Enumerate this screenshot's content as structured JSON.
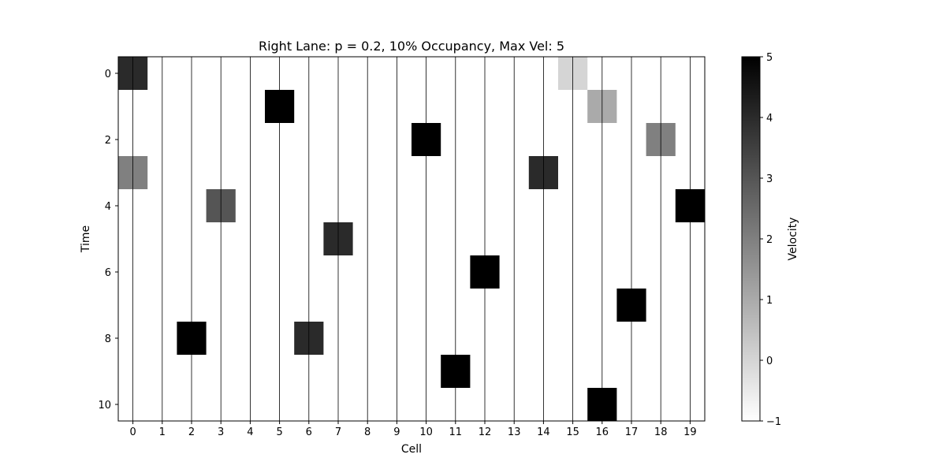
{
  "chart_data": {
    "type": "heatmap",
    "title": "Right Lane: p = 0.2, 10% Occupancy, Max Vel: 5",
    "xlabel": "Cell",
    "ylabel": "Time",
    "colorbar_label": "Velocity",
    "x_categories": [
      0,
      1,
      2,
      3,
      4,
      5,
      6,
      7,
      8,
      9,
      10,
      11,
      12,
      13,
      14,
      15,
      16,
      17,
      18,
      19
    ],
    "y_categories": [
      0,
      1,
      2,
      3,
      4,
      5,
      6,
      7,
      8,
      9,
      10
    ],
    "x_tick_labels": [
      "0",
      "1",
      "2",
      "3",
      "4",
      "5",
      "6",
      "7",
      "8",
      "9",
      "10",
      "11",
      "12",
      "13",
      "14",
      "15",
      "16",
      "17",
      "18",
      "19"
    ],
    "y_tick_labels": [
      "0",
      "2",
      "4",
      "6",
      "8",
      "10"
    ],
    "y_ticks": [
      0,
      2,
      4,
      6,
      8,
      10
    ],
    "empty_value": -1,
    "cells": [
      {
        "time": 0,
        "cell": 0,
        "velocity": 4
      },
      {
        "time": 0,
        "cell": 15,
        "velocity": 0
      },
      {
        "time": 1,
        "cell": 5,
        "velocity": 5
      },
      {
        "time": 1,
        "cell": 16,
        "velocity": 1
      },
      {
        "time": 2,
        "cell": 10,
        "velocity": 5
      },
      {
        "time": 2,
        "cell": 18,
        "velocity": 2
      },
      {
        "time": 3,
        "cell": 0,
        "velocity": 2
      },
      {
        "time": 3,
        "cell": 14,
        "velocity": 4
      },
      {
        "time": 4,
        "cell": 3,
        "velocity": 3
      },
      {
        "time": 4,
        "cell": 19,
        "velocity": 5
      },
      {
        "time": 5,
        "cell": 7,
        "velocity": 4
      },
      {
        "time": 6,
        "cell": 12,
        "velocity": 5
      },
      {
        "time": 7,
        "cell": 17,
        "velocity": 5
      },
      {
        "time": 8,
        "cell": 2,
        "velocity": 5
      },
      {
        "time": 8,
        "cell": 6,
        "velocity": 4
      },
      {
        "time": 9,
        "cell": 11,
        "velocity": 5
      },
      {
        "time": 10,
        "cell": 16,
        "velocity": 5
      }
    ],
    "color_range": [
      -1,
      5
    ],
    "colorbar_ticks": [
      "-1",
      "0",
      "1",
      "2",
      "3",
      "4",
      "5"
    ],
    "colormap": "Greys",
    "vertical_grid": true
  }
}
